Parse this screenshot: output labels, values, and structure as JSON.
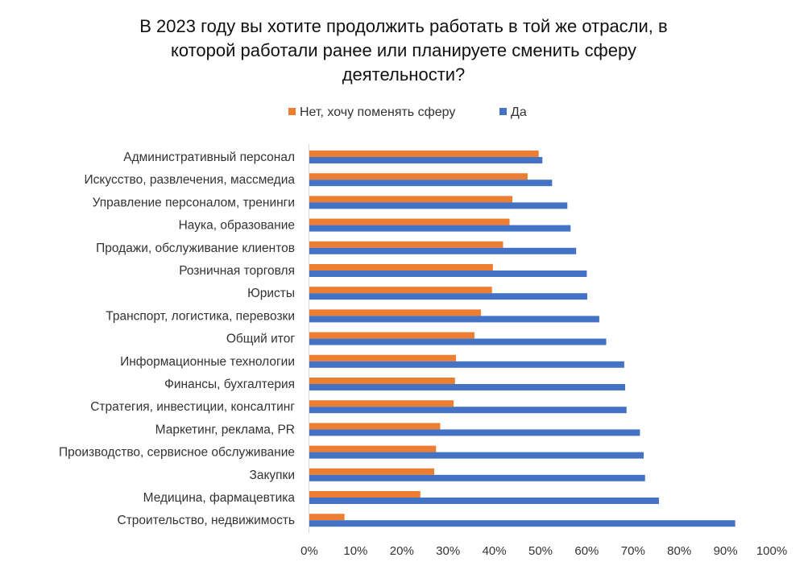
{
  "chart_data": {
    "type": "bar",
    "orientation": "horizontal",
    "title_lines": [
      "В 2023 году вы хотите продолжить работать в той же отрасли, в",
      "которой работали ранее или планируете сменить сферу",
      "деятельности?"
    ],
    "categories": [
      "Административный персонал",
      "Искусство, развлечения, массмедиа",
      "Управление персоналом, тренинги",
      "Наука, образование",
      "Продажи, обслуживание клиентов",
      "Розничная торговля",
      "Юристы",
      "Транспорт, логистика, перевозки",
      "Общий итог",
      "Информационные технологии",
      "Финансы, бухгалтерия",
      "Стратегия, инвестиции, консалтинг",
      "Маркетинг, реклама, PR",
      "Производство, сервисное обслуживание",
      "Закупки",
      "Медицина, фармацевтика",
      "Строительство, недвижимость"
    ],
    "series": [
      {
        "name": "Нет, хочу поменять сферу",
        "color": "#ED7D31",
        "values": [
          49.6,
          47.2,
          43.9,
          43.3,
          41.9,
          39.7,
          39.5,
          37.1,
          35.7,
          31.7,
          31.5,
          31.2,
          28.3,
          27.4,
          27.0,
          24.0,
          7.6
        ]
      },
      {
        "name": "Да",
        "color": "#4472C4",
        "values": [
          50.4,
          52.5,
          55.8,
          56.5,
          57.7,
          60.0,
          60.1,
          62.7,
          64.2,
          68.1,
          68.3,
          68.6,
          71.5,
          72.3,
          72.6,
          75.6,
          92.1
        ]
      }
    ],
    "xlim": [
      0,
      100
    ],
    "x_ticks": [
      0,
      10,
      20,
      30,
      40,
      50,
      60,
      70,
      80,
      90,
      100
    ],
    "tick_suffix": "%",
    "legend_position": "top-center",
    "grid": false
  }
}
